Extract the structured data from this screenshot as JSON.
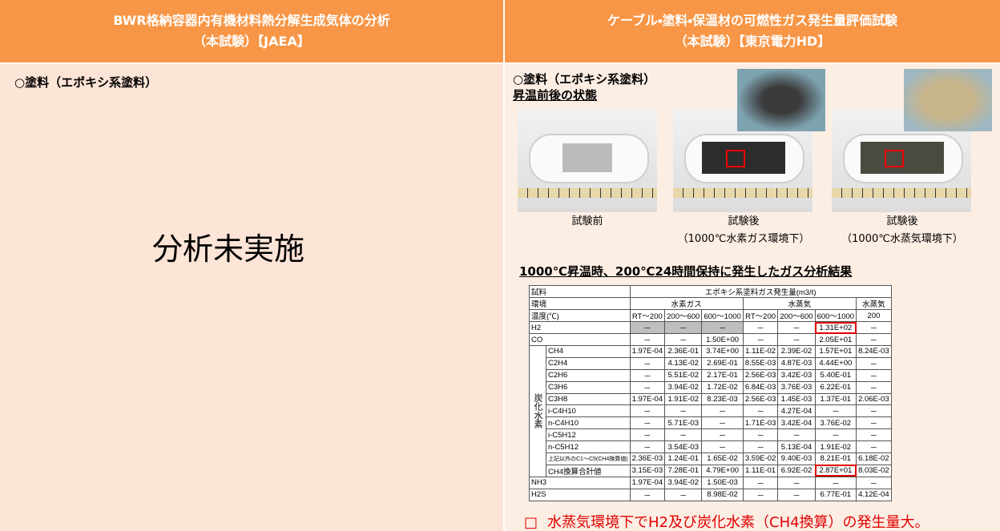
{
  "header": {
    "left_title": [
      "BWR格納容器内有機材料熱分解生成気体の分析",
      "（本試験）【JAEA】"
    ],
    "right_title": [
      "ケーブル・塗料・保温材の可燃性ガス発生量評価試験",
      "（本試験）【東京電力HD】"
    ]
  },
  "left": {
    "heading": "○塗料（エポキシ系塗料）",
    "message": "分析未実施"
  },
  "right": {
    "heading": "○塗料（エポキシ系塗料）",
    "subheading": "昇温前後の状態",
    "photos": [
      {
        "caption": [
          "試験前"
        ]
      },
      {
        "caption": [
          "試験後",
          "（1000℃水素ガス環境下）"
        ]
      },
      {
        "caption": [
          "試験後",
          "（1000℃水蒸気環境下）"
        ]
      }
    ],
    "table_title": "1000℃昇温時、200℃24時間保持に発生したガス分析結果",
    "table": {
      "sample_label": "試料",
      "quantity_label": "エポキシ系塗料ガス発生量(m3/t)",
      "environment_label": "環境",
      "environments": [
        "水素ガス",
        "水蒸気",
        "水蒸気"
      ],
      "temperature_label": "温度(℃)",
      "temperatures": [
        "RT～200",
        "200～600",
        "600～1000",
        "RT～200",
        "200～600",
        "600～1000",
        "200"
      ],
      "rows_top": [
        {
          "label": "H2",
          "values": [
            "－",
            "－",
            "－",
            "－",
            "－",
            "1.31E+02",
            "－"
          ]
        },
        {
          "label": "CO",
          "values": [
            "－",
            "－",
            "1.50E+00",
            "－",
            "－",
            "2.05E+01",
            "－"
          ]
        }
      ],
      "hydrocarbon": {
        "label": "炭化水素",
        "rows": [
          {
            "label": "CH4",
            "values": [
              "1.97E-04",
              "2.36E-01",
              "3.74E+00",
              "1.11E-02",
              "2.39E-02",
              "1.57E+01",
              "8.24E-03"
            ]
          },
          {
            "label": "C2H4",
            "values": [
              "－",
              "4.13E-02",
              "2.69E-01",
              "8.55E-03",
              "4.87E-03",
              "4.44E+00",
              "－"
            ]
          },
          {
            "label": "C2H6",
            "values": [
              "－",
              "5.51E-02",
              "2.17E-01",
              "2.56E-03",
              "3.42E-03",
              "5.40E-01",
              "－"
            ]
          },
          {
            "label": "C3H6",
            "values": [
              "－",
              "3.94E-02",
              "1.72E-02",
              "6.84E-03",
              "3.76E-03",
              "6.22E-01",
              "－"
            ]
          },
          {
            "label": "C3H8",
            "values": [
              "1.97E-04",
              "1.91E-02",
              "8.23E-03",
              "2.56E-03",
              "1.45E-03",
              "1.37E-01",
              "2.06E-03"
            ]
          },
          {
            "label": "i-C4H10",
            "values": [
              "－",
              "－",
              "－",
              "－",
              "4.27E-04",
              "－",
              "－"
            ]
          },
          {
            "label": "n-C4H10",
            "values": [
              "－",
              "5.71E-03",
              "－",
              "1.71E-03",
              "3.42E-04",
              "3.76E-02",
              "－"
            ]
          },
          {
            "label": "i-C5H12",
            "values": [
              "－",
              "－",
              "－",
              "－",
              "－",
              "－",
              "－"
            ]
          },
          {
            "label": "n-C5H12",
            "values": [
              "－",
              "3.54E-03",
              "－",
              "－",
              "5.13E-04",
              "1.91E-02",
              "－"
            ]
          },
          {
            "label": "上記以外のC1～C5(CH4換算値)",
            "values": [
              "2.36E-03",
              "1.24E-01",
              "1.65E-02",
              "3.59E-02",
              "9.40E-03",
              "8.21E-01",
              "6.18E-02"
            ]
          },
          {
            "label": "CH4換算合計値",
            "values": [
              "3.15E-03",
              "7.28E-01",
              "4.79E+00",
              "1.11E-01",
              "6.92E-02",
              "2.87E+01",
              "8.03E-02"
            ]
          }
        ]
      },
      "rows_bottom": [
        {
          "label": "NH3",
          "values": [
            "1.97E-04",
            "3.94E-02",
            "1.50E-03",
            "－",
            "－",
            "－",
            "－"
          ]
        },
        {
          "label": "H2S",
          "values": [
            "－",
            "－",
            "8.98E-02",
            "－",
            "－",
            "6.77E-01",
            "4.12E-04"
          ]
        }
      ]
    },
    "conclusion_marker": "□",
    "conclusion": "水蒸気環境下でH2及び炭化水素（CH4換算）の発生量大。"
  }
}
